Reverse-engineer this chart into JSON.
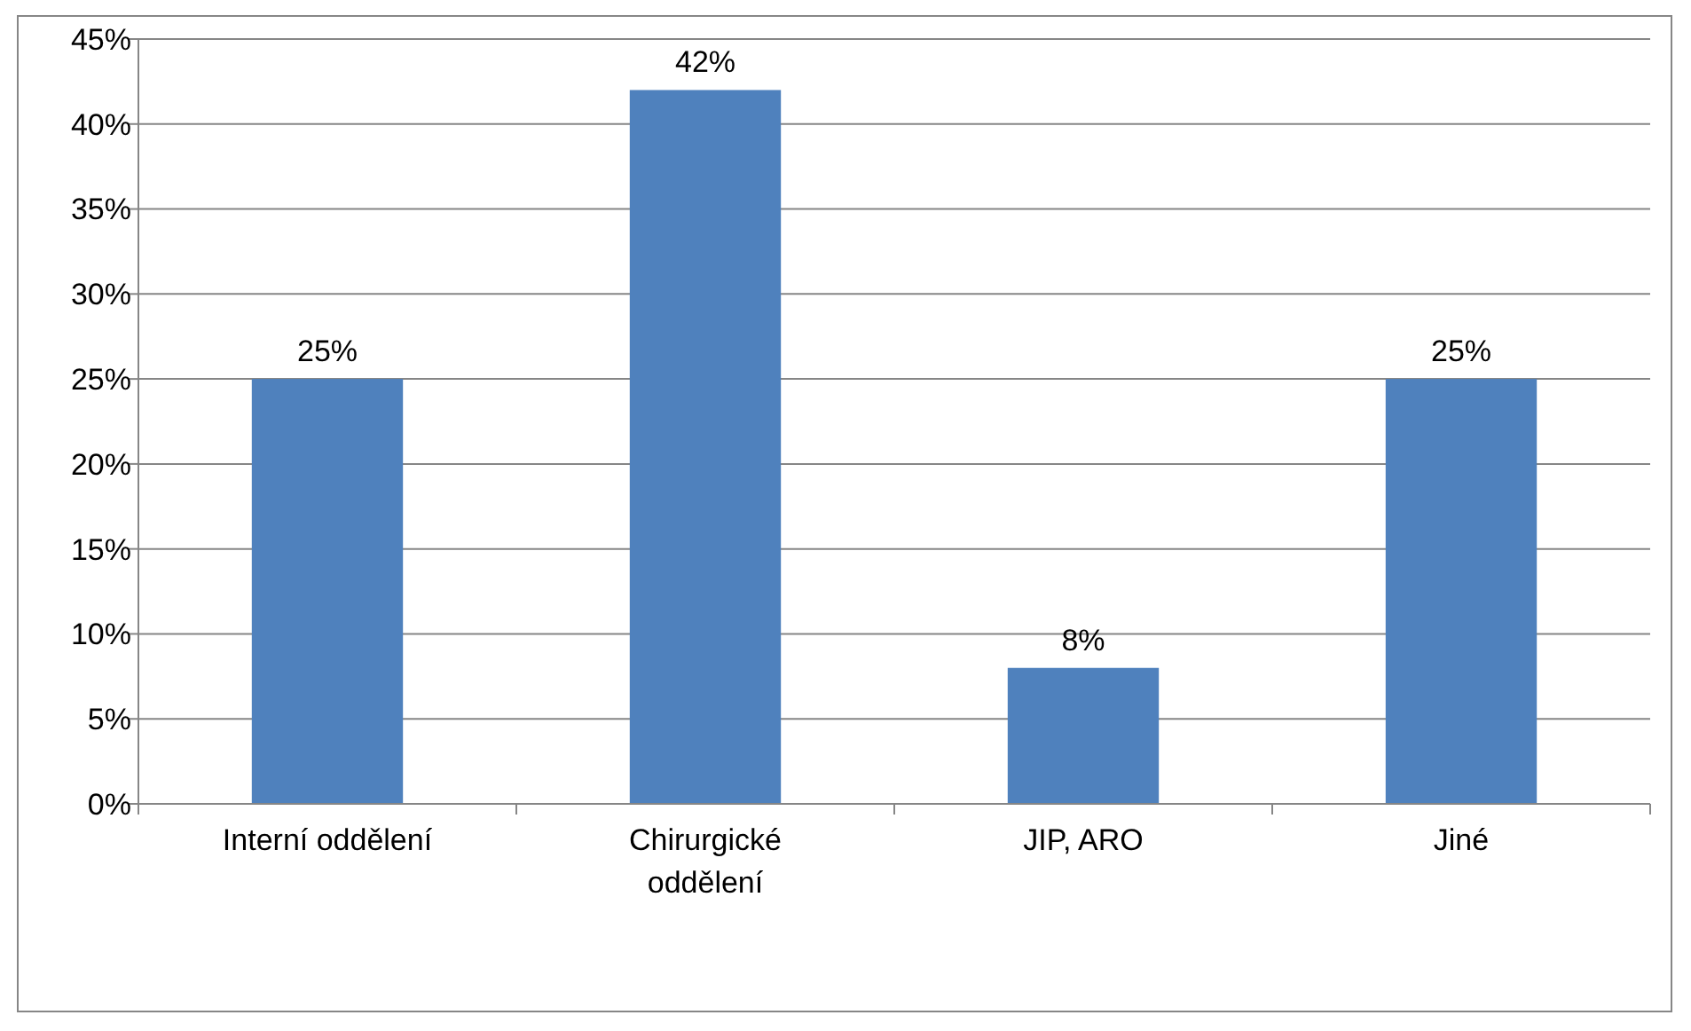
{
  "chart_data": {
    "type": "bar",
    "categories": [
      "Interní oddělení",
      "Chirurgické oddělení",
      "JIP, ARO",
      "Jiné"
    ],
    "values": [
      25,
      42,
      8,
      25
    ],
    "value_labels": [
      "25%",
      "42%",
      "8%",
      "25%"
    ],
    "color": "#4f81bd",
    "ylim": [
      0,
      45
    ],
    "yticks": [
      {
        "value": 0,
        "label": "0%"
      },
      {
        "value": 5,
        "label": "5%"
      },
      {
        "value": 10,
        "label": "10%"
      },
      {
        "value": 15,
        "label": "15%"
      },
      {
        "value": 20,
        "label": "20%"
      },
      {
        "value": 25,
        "label": "25%"
      },
      {
        "value": 30,
        "label": "30%"
      },
      {
        "value": 35,
        "label": "35%"
      },
      {
        "value": 40,
        "label": "40%"
      },
      {
        "value": 45,
        "label": "45%"
      }
    ],
    "grid": "y"
  }
}
